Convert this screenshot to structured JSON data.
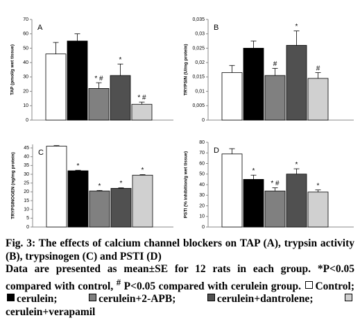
{
  "chart_data": [
    {
      "type": "bar",
      "panel": "A",
      "ylabel": "TAP (pmol/g wet tissue)",
      "categories": [
        null,
        null,
        null,
        null,
        null
      ],
      "values": [
        46,
        55,
        22,
        31,
        11
      ],
      "errors": [
        8,
        5,
        4,
        8,
        1.5
      ],
      "annotations": [
        null,
        null,
        "* #",
        "*",
        "* #"
      ],
      "colors": [
        "#ffffff",
        "#000000",
        "#808080",
        "#505050",
        "#d0d0d0"
      ],
      "ylim": [
        0,
        70
      ],
      "yticks": [
        0,
        10,
        20,
        30,
        40,
        50,
        60,
        70
      ]
    },
    {
      "type": "bar",
      "panel": "B",
      "ylabel": "TRYPSIN (U/mg protein)",
      "categories": [
        null,
        null,
        null,
        null,
        null
      ],
      "values": [
        0.0165,
        0.025,
        0.0155,
        0.026,
        0.0145
      ],
      "errors": [
        0.0025,
        0.0025,
        0.0025,
        0.005,
        0.002
      ],
      "annotations": [
        null,
        null,
        "#",
        "*",
        "#"
      ],
      "colors": [
        "#ffffff",
        "#000000",
        "#808080",
        "#505050",
        "#d0d0d0"
      ],
      "ylim": [
        0,
        0.035
      ],
      "yticks": [
        0,
        {
          "value": 0.005,
          "label": "0,005"
        },
        {
          "value": 0.01,
          "label": "0,01"
        },
        {
          "value": 0.015,
          "label": "0,015"
        },
        {
          "value": 0.02,
          "label": "0,02"
        },
        {
          "value": 0.025,
          "label": "0,025"
        },
        {
          "value": 0.03,
          "label": "0,03"
        },
        {
          "value": 0.035,
          "label": "0,035"
        }
      ]
    },
    {
      "type": "bar",
      "panel": "C",
      "ylabel": "TRYPSINOGEN (ng/mg protein)",
      "categories": [
        null,
        null,
        null,
        null,
        null
      ],
      "values": [
        46,
        32,
        20.5,
        22,
        29.5
      ],
      "errors": [
        0.3,
        0.3,
        0.3,
        0.3,
        0.3
      ],
      "annotations": [
        null,
        "*",
        "*",
        "*",
        "*"
      ],
      "colors": [
        "#ffffff",
        "#000000",
        "#808080",
        "#505050",
        "#d0d0d0"
      ],
      "ylim": [
        0,
        47
      ],
      "yticks": [
        0,
        5,
        10,
        15,
        20,
        25,
        30,
        35,
        40,
        45
      ]
    },
    {
      "type": "bar",
      "panel": "D",
      "ylabel": "PSTI (% inhibition/g wet tissue)",
      "categories": [
        null,
        null,
        null,
        null,
        null
      ],
      "values": [
        69,
        45,
        34,
        50,
        33
      ],
      "errors": [
        5,
        4,
        3,
        5,
        2
      ],
      "annotations": [
        null,
        "*",
        "* #",
        "*",
        "*"
      ],
      "colors": [
        "#ffffff",
        "#000000",
        "#808080",
        "#505050",
        "#d0d0d0"
      ],
      "ylim": [
        0,
        80
      ],
      "yticks": [
        0,
        10,
        20,
        30,
        40,
        50,
        60,
        70,
        80
      ]
    }
  ],
  "caption": {
    "title": "Fig. 3: The effects of calcium channel blockers on TAP (A), trypsin activity (B), trypsinogen (C) and PSTI (D)",
    "note": [
      "Data are presented as mean±SE for 12 rats in each group. *P<0.05 compared with control, ",
      "#",
      " P<0.05 compared with cerulein group."
    ],
    "legend": [
      {
        "name": "Control;",
        "color": "#ffffff"
      },
      {
        "name": "cerulein;",
        "color": "#000000"
      },
      {
        "name": "cerulein+2-APB;",
        "color": "#808080"
      },
      {
        "name": "cerulein+dantrolene;",
        "color": "#505050"
      },
      {
        "name": "cerulein+verapamil",
        "color": "#d0d0d0"
      }
    ]
  }
}
